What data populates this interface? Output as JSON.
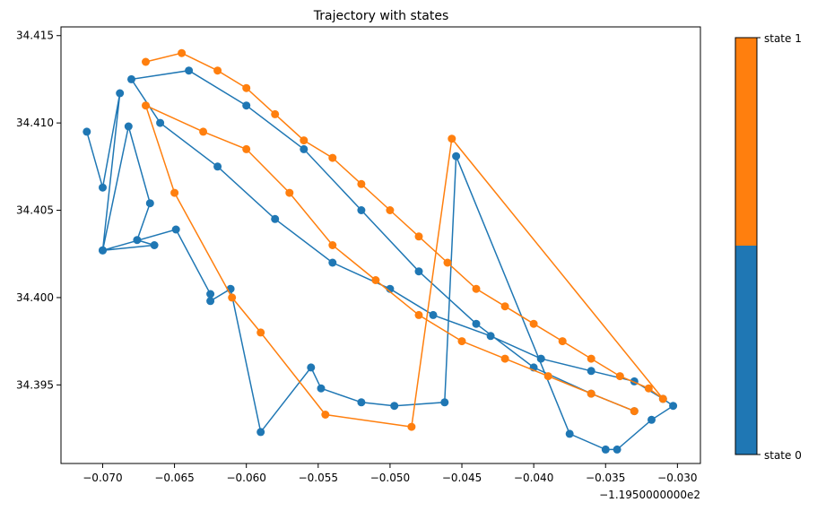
{
  "chart_data": {
    "type": "line",
    "title": "Trajectory with states",
    "xlabel": "",
    "ylabel": "",
    "x_offset_label": "−1.1950000000e2",
    "xlim": [
      -0.0729,
      -0.0284
    ],
    "ylim": [
      34.3905,
      34.4155
    ],
    "x_ticks": [
      -0.07,
      -0.065,
      -0.06,
      -0.055,
      -0.05,
      -0.045,
      -0.04,
      -0.035,
      -0.03
    ],
    "x_tick_labels": [
      "−0.070",
      "−0.065",
      "−0.060",
      "−0.055",
      "−0.050",
      "−0.045",
      "−0.040",
      "−0.035",
      "−0.030"
    ],
    "y_ticks": [
      34.395,
      34.4,
      34.405,
      34.41,
      34.415
    ],
    "y_tick_labels": [
      "34.395",
      "34.400",
      "34.405",
      "34.410",
      "34.415"
    ],
    "grid": false,
    "colorbar": {
      "labels": [
        "state 0",
        "state 1"
      ],
      "colors": [
        "#1f77b4",
        "#ff7f0e"
      ]
    },
    "series": [
      {
        "state": 0,
        "color": "#1f77b4",
        "x": [
          -0.0711,
          -0.07,
          -0.0688,
          -0.07,
          -0.0682,
          -0.0667,
          -0.0676,
          -0.0664,
          -0.07,
          -0.0649,
          -0.0625,
          -0.0625,
          -0.0611,
          -0.059,
          -0.0555,
          -0.0548,
          -0.052,
          -0.0497,
          -0.0462,
          -0.0454,
          -0.0375,
          -0.035,
          -0.0342,
          -0.0318,
          -0.0303,
          -0.031,
          -0.033,
          -0.036,
          -0.0395,
          -0.043,
          -0.047,
          -0.05,
          -0.054,
          -0.058,
          -0.062,
          -0.066,
          -0.068,
          -0.064,
          -0.06,
          -0.056,
          -0.052,
          -0.048,
          -0.044,
          -0.04,
          -0.036,
          -0.033
        ],
        "y": [
          34.4095,
          34.4063,
          34.4117,
          34.4027,
          34.4098,
          34.4054,
          34.4033,
          34.403,
          34.4027,
          34.4039,
          34.4002,
          34.3998,
          34.4005,
          34.3923,
          34.396,
          34.3948,
          34.394,
          34.3938,
          34.394,
          34.4081,
          34.3922,
          34.3913,
          34.3913,
          34.393,
          34.3938,
          34.3942,
          34.3952,
          34.3958,
          34.3965,
          34.3978,
          34.399,
          34.4005,
          34.402,
          34.4045,
          34.4075,
          34.41,
          34.4125,
          34.413,
          34.411,
          34.4085,
          34.405,
          34.4015,
          34.3985,
          34.396,
          34.3945,
          34.3935
        ]
      },
      {
        "state": 1,
        "color": "#ff7f0e",
        "x": [
          -0.067,
          -0.0645,
          -0.062,
          -0.06,
          -0.058,
          -0.056,
          -0.054,
          -0.052,
          -0.05,
          -0.048,
          -0.046,
          -0.044,
          -0.042,
          -0.04,
          -0.038,
          -0.036,
          -0.034,
          -0.032,
          -0.031,
          -0.0457,
          -0.0485,
          -0.0545,
          -0.059,
          -0.061,
          -0.065,
          -0.067,
          -0.063,
          -0.06,
          -0.057,
          -0.054,
          -0.051,
          -0.048,
          -0.045,
          -0.042,
          -0.039,
          -0.036,
          -0.033
        ],
        "y": [
          34.4135,
          34.414,
          34.413,
          34.412,
          34.4105,
          34.409,
          34.408,
          34.4065,
          34.405,
          34.4035,
          34.402,
          34.4005,
          34.3995,
          34.3985,
          34.3975,
          34.3965,
          34.3955,
          34.3948,
          34.3942,
          34.4091,
          34.3926,
          34.3933,
          34.398,
          34.4,
          34.406,
          34.411,
          34.4095,
          34.4085,
          34.406,
          34.403,
          34.401,
          34.399,
          34.3975,
          34.3965,
          34.3955,
          34.3945,
          34.3935
        ]
      }
    ]
  }
}
